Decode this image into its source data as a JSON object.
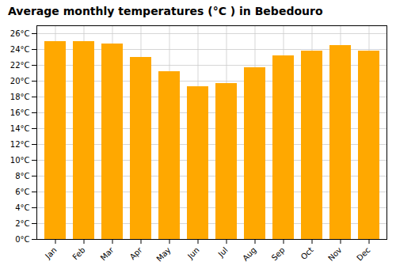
{
  "chart_data": {
    "type": "bar",
    "title": "Average monthly temperatures (°C ) in Bebedouro",
    "categories": [
      "Jan",
      "Feb",
      "Mar",
      "Apr",
      "May",
      "Jun",
      "Jul",
      "Aug",
      "Sep",
      "Oct",
      "Nov",
      "Dec"
    ],
    "values": [
      25.0,
      25.0,
      24.7,
      23.0,
      21.2,
      19.3,
      19.7,
      21.7,
      23.2,
      23.8,
      24.5,
      23.8
    ],
    "color": "#FFA800",
    "ylim": [
      0,
      27
    ],
    "yticks": [
      {
        "value": 0,
        "label": "0°C"
      },
      {
        "value": 2,
        "label": "2°C"
      },
      {
        "value": 4,
        "label": "4°C"
      },
      {
        "value": 6,
        "label": "6°C"
      },
      {
        "value": 8,
        "label": "8°C"
      },
      {
        "value": 10,
        "label": "10°C"
      },
      {
        "value": 12,
        "label": "12°C"
      },
      {
        "value": 14,
        "label": "14°C"
      },
      {
        "value": 16,
        "label": "16°C"
      },
      {
        "value": 18,
        "label": "18°C"
      },
      {
        "value": 20,
        "label": "20°C"
      },
      {
        "value": 22,
        "label": "22°C"
      },
      {
        "value": 24,
        "label": "24°C"
      },
      {
        "value": 26,
        "label": "26°C"
      }
    ],
    "grid": true
  }
}
